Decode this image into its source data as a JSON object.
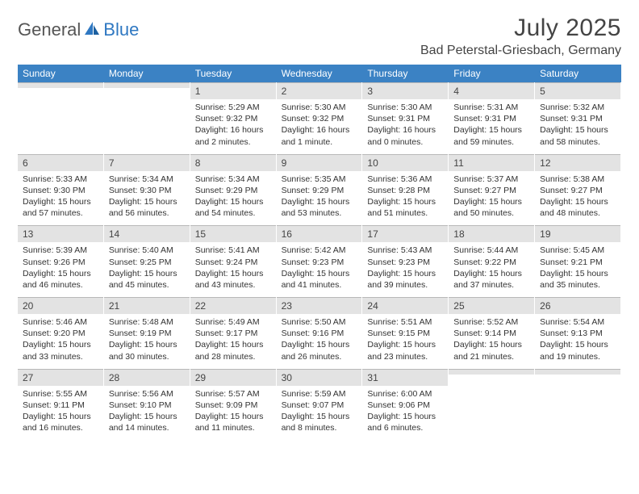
{
  "brand": {
    "part1": "General",
    "part2": "Blue"
  },
  "title": "July 2025",
  "location": "Bad Peterstal-Griesbach, Germany",
  "colors": {
    "header_bg": "#3b82c4",
    "header_text": "#ffffff",
    "daynum_bg": "#e3e3e3",
    "daynum_border": "#b8b8b8",
    "body_text": "#333333",
    "title_text": "#444444",
    "logo_gray": "#555555",
    "logo_blue": "#2f78c2",
    "page_bg": "#ffffff"
  },
  "typography": {
    "title_fontsize": 30,
    "location_fontsize": 16,
    "dow_fontsize": 12,
    "daynum_fontsize": 12,
    "body_fontsize": 10.5
  },
  "dow": [
    "Sunday",
    "Monday",
    "Tuesday",
    "Wednesday",
    "Thursday",
    "Friday",
    "Saturday"
  ],
  "weeks": [
    [
      {
        "n": "",
        "sr": "",
        "ss": "",
        "dl": ""
      },
      {
        "n": "",
        "sr": "",
        "ss": "",
        "dl": ""
      },
      {
        "n": "1",
        "sr": "Sunrise: 5:29 AM",
        "ss": "Sunset: 9:32 PM",
        "dl": "Daylight: 16 hours and 2 minutes."
      },
      {
        "n": "2",
        "sr": "Sunrise: 5:30 AM",
        "ss": "Sunset: 9:32 PM",
        "dl": "Daylight: 16 hours and 1 minute."
      },
      {
        "n": "3",
        "sr": "Sunrise: 5:30 AM",
        "ss": "Sunset: 9:31 PM",
        "dl": "Daylight: 16 hours and 0 minutes."
      },
      {
        "n": "4",
        "sr": "Sunrise: 5:31 AM",
        "ss": "Sunset: 9:31 PM",
        "dl": "Daylight: 15 hours and 59 minutes."
      },
      {
        "n": "5",
        "sr": "Sunrise: 5:32 AM",
        "ss": "Sunset: 9:31 PM",
        "dl": "Daylight: 15 hours and 58 minutes."
      }
    ],
    [
      {
        "n": "6",
        "sr": "Sunrise: 5:33 AM",
        "ss": "Sunset: 9:30 PM",
        "dl": "Daylight: 15 hours and 57 minutes."
      },
      {
        "n": "7",
        "sr": "Sunrise: 5:34 AM",
        "ss": "Sunset: 9:30 PM",
        "dl": "Daylight: 15 hours and 56 minutes."
      },
      {
        "n": "8",
        "sr": "Sunrise: 5:34 AM",
        "ss": "Sunset: 9:29 PM",
        "dl": "Daylight: 15 hours and 54 minutes."
      },
      {
        "n": "9",
        "sr": "Sunrise: 5:35 AM",
        "ss": "Sunset: 9:29 PM",
        "dl": "Daylight: 15 hours and 53 minutes."
      },
      {
        "n": "10",
        "sr": "Sunrise: 5:36 AM",
        "ss": "Sunset: 9:28 PM",
        "dl": "Daylight: 15 hours and 51 minutes."
      },
      {
        "n": "11",
        "sr": "Sunrise: 5:37 AM",
        "ss": "Sunset: 9:27 PM",
        "dl": "Daylight: 15 hours and 50 minutes."
      },
      {
        "n": "12",
        "sr": "Sunrise: 5:38 AM",
        "ss": "Sunset: 9:27 PM",
        "dl": "Daylight: 15 hours and 48 minutes."
      }
    ],
    [
      {
        "n": "13",
        "sr": "Sunrise: 5:39 AM",
        "ss": "Sunset: 9:26 PM",
        "dl": "Daylight: 15 hours and 46 minutes."
      },
      {
        "n": "14",
        "sr": "Sunrise: 5:40 AM",
        "ss": "Sunset: 9:25 PM",
        "dl": "Daylight: 15 hours and 45 minutes."
      },
      {
        "n": "15",
        "sr": "Sunrise: 5:41 AM",
        "ss": "Sunset: 9:24 PM",
        "dl": "Daylight: 15 hours and 43 minutes."
      },
      {
        "n": "16",
        "sr": "Sunrise: 5:42 AM",
        "ss": "Sunset: 9:23 PM",
        "dl": "Daylight: 15 hours and 41 minutes."
      },
      {
        "n": "17",
        "sr": "Sunrise: 5:43 AM",
        "ss": "Sunset: 9:23 PM",
        "dl": "Daylight: 15 hours and 39 minutes."
      },
      {
        "n": "18",
        "sr": "Sunrise: 5:44 AM",
        "ss": "Sunset: 9:22 PM",
        "dl": "Daylight: 15 hours and 37 minutes."
      },
      {
        "n": "19",
        "sr": "Sunrise: 5:45 AM",
        "ss": "Sunset: 9:21 PM",
        "dl": "Daylight: 15 hours and 35 minutes."
      }
    ],
    [
      {
        "n": "20",
        "sr": "Sunrise: 5:46 AM",
        "ss": "Sunset: 9:20 PM",
        "dl": "Daylight: 15 hours and 33 minutes."
      },
      {
        "n": "21",
        "sr": "Sunrise: 5:48 AM",
        "ss": "Sunset: 9:19 PM",
        "dl": "Daylight: 15 hours and 30 minutes."
      },
      {
        "n": "22",
        "sr": "Sunrise: 5:49 AM",
        "ss": "Sunset: 9:17 PM",
        "dl": "Daylight: 15 hours and 28 minutes."
      },
      {
        "n": "23",
        "sr": "Sunrise: 5:50 AM",
        "ss": "Sunset: 9:16 PM",
        "dl": "Daylight: 15 hours and 26 minutes."
      },
      {
        "n": "24",
        "sr": "Sunrise: 5:51 AM",
        "ss": "Sunset: 9:15 PM",
        "dl": "Daylight: 15 hours and 23 minutes."
      },
      {
        "n": "25",
        "sr": "Sunrise: 5:52 AM",
        "ss": "Sunset: 9:14 PM",
        "dl": "Daylight: 15 hours and 21 minutes."
      },
      {
        "n": "26",
        "sr": "Sunrise: 5:54 AM",
        "ss": "Sunset: 9:13 PM",
        "dl": "Daylight: 15 hours and 19 minutes."
      }
    ],
    [
      {
        "n": "27",
        "sr": "Sunrise: 5:55 AM",
        "ss": "Sunset: 9:11 PM",
        "dl": "Daylight: 15 hours and 16 minutes."
      },
      {
        "n": "28",
        "sr": "Sunrise: 5:56 AM",
        "ss": "Sunset: 9:10 PM",
        "dl": "Daylight: 15 hours and 14 minutes."
      },
      {
        "n": "29",
        "sr": "Sunrise: 5:57 AM",
        "ss": "Sunset: 9:09 PM",
        "dl": "Daylight: 15 hours and 11 minutes."
      },
      {
        "n": "30",
        "sr": "Sunrise: 5:59 AM",
        "ss": "Sunset: 9:07 PM",
        "dl": "Daylight: 15 hours and 8 minutes."
      },
      {
        "n": "31",
        "sr": "Sunrise: 6:00 AM",
        "ss": "Sunset: 9:06 PM",
        "dl": "Daylight: 15 hours and 6 minutes."
      },
      {
        "n": "",
        "sr": "",
        "ss": "",
        "dl": ""
      },
      {
        "n": "",
        "sr": "",
        "ss": "",
        "dl": ""
      }
    ]
  ]
}
